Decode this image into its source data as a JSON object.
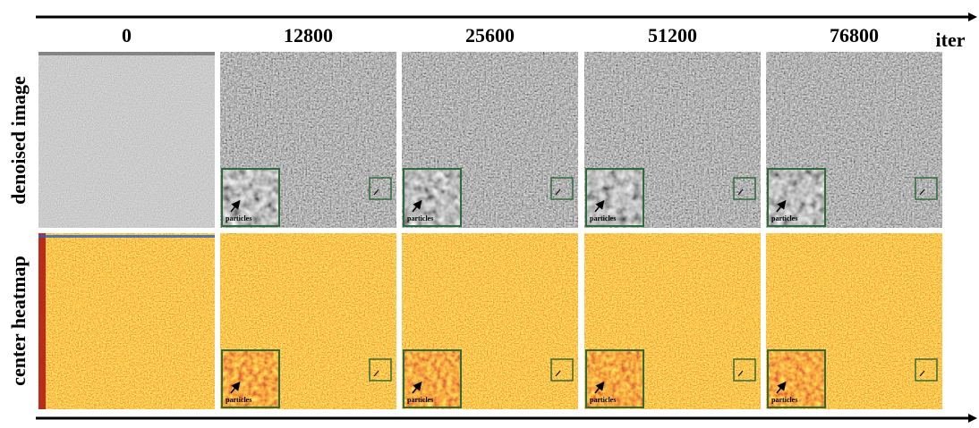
{
  "figure": {
    "columns": [
      "0",
      "12800",
      "25600",
      "51200",
      "76800"
    ],
    "axis_label": "iter",
    "rows": [
      "denoised image",
      "center heatmap"
    ],
    "inset_label": "particles"
  }
}
